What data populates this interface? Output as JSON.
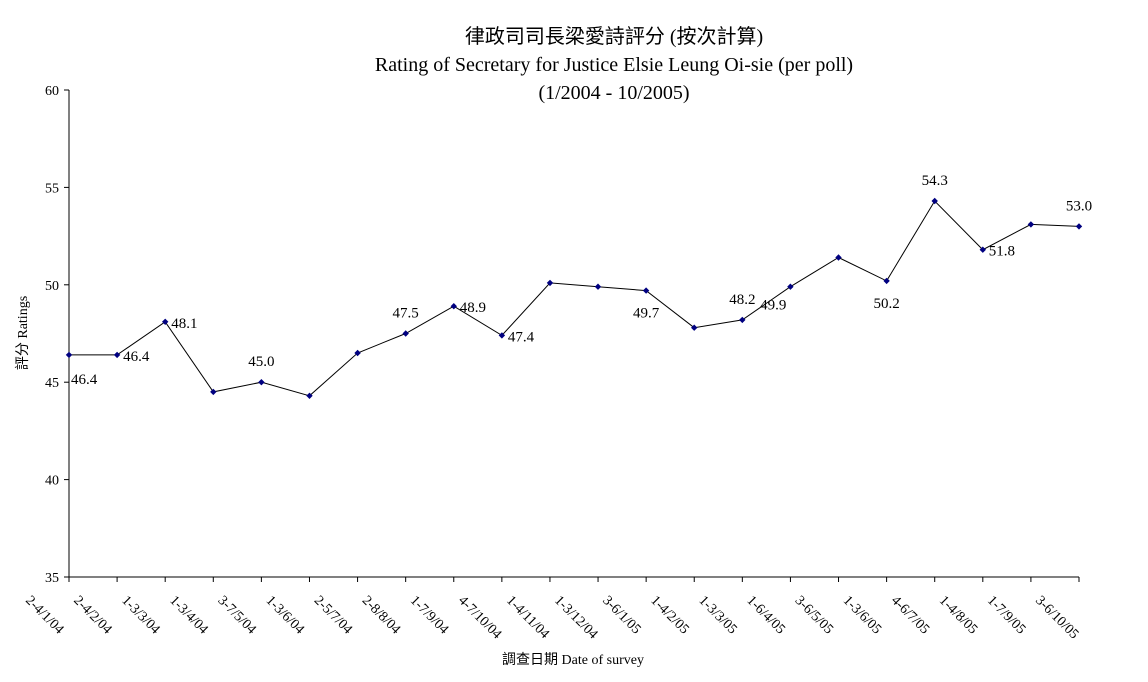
{
  "chart_data": {
    "type": "line",
    "title_lines": [
      "律政司司長梁愛詩評分 (按次計算)",
      "Rating of Secretary for Justice Elsie Leung Oi-sie  (per poll)",
      "(1/2004 - 10/2005)"
    ],
    "xlabel": "調查日期 Date of survey",
    "ylabel": "評分 Ratings",
    "ylim": [
      35,
      60
    ],
    "yticks": [
      35,
      40,
      45,
      50,
      55,
      60
    ],
    "grid": false,
    "line_color": "#000000",
    "marker_color": "#000080",
    "categories": [
      "2-4/1/04",
      "2-4/2/04",
      "1-3/3/04",
      "1-3/4/04",
      "3-7/5/04",
      "1-3/6/04",
      "2-5/7/04",
      "2-8/8/04",
      "1-7/9/04",
      "4-7/10/04",
      "1-4/11/04",
      "1-3/12/04",
      "3-6/1/05",
      "1-4/2/05",
      "1-3/3/05",
      "1-6/4/05",
      "3-6/5/05",
      "1-3/6/05",
      "4-6/7/05",
      "1-4/8/05",
      "1-7/9/05",
      "3-6/10/05"
    ],
    "values": [
      46.4,
      46.4,
      48.1,
      44.5,
      45.0,
      44.3,
      46.5,
      47.5,
      48.9,
      47.4,
      50.1,
      49.9,
      49.7,
      47.8,
      48.2,
      49.9,
      51.4,
      50.2,
      54.3,
      51.8,
      53.1,
      53.0
    ],
    "data_labels": [
      {
        "index": 0,
        "text": "46.4",
        "pos": "below-right"
      },
      {
        "index": 1,
        "text": "46.4",
        "pos": "right"
      },
      {
        "index": 2,
        "text": "48.1",
        "pos": "right"
      },
      {
        "index": 4,
        "text": "45.0",
        "pos": "above"
      },
      {
        "index": 7,
        "text": "47.5",
        "pos": "above"
      },
      {
        "index": 8,
        "text": "48.9",
        "pos": "right"
      },
      {
        "index": 9,
        "text": "47.4",
        "pos": "right"
      },
      {
        "index": 12,
        "text": "49.7",
        "pos": "below"
      },
      {
        "index": 14,
        "text": "48.2",
        "pos": "above"
      },
      {
        "index": 15,
        "text": "49.9",
        "pos": "below-left"
      },
      {
        "index": 17,
        "text": "50.2",
        "pos": "below"
      },
      {
        "index": 18,
        "text": "54.3",
        "pos": "above"
      },
      {
        "index": 19,
        "text": "51.8",
        "pos": "right"
      },
      {
        "index": 21,
        "text": "53.0",
        "pos": "above"
      }
    ]
  }
}
